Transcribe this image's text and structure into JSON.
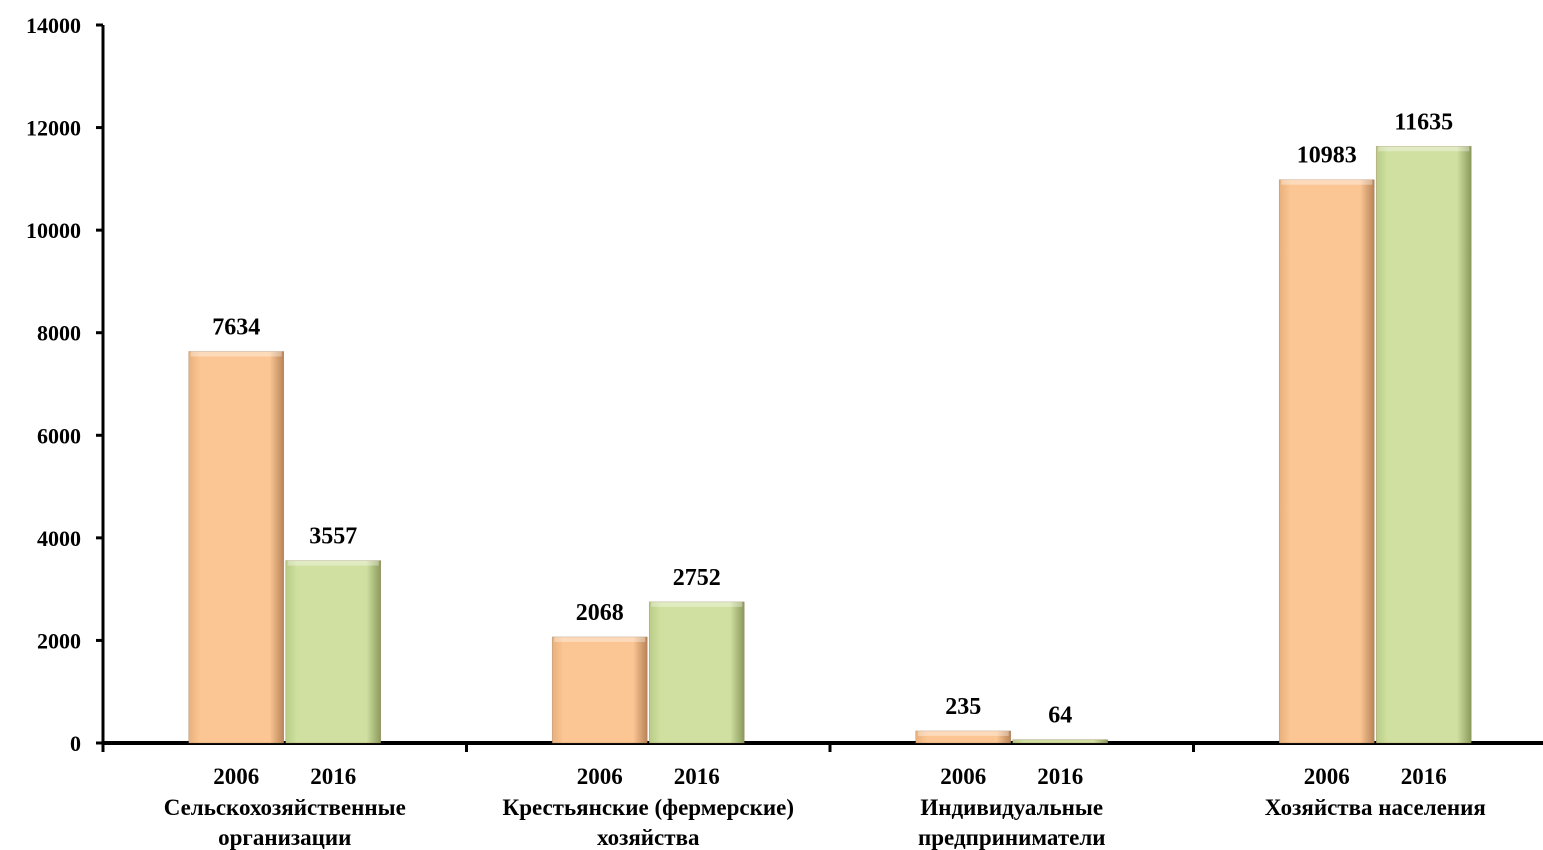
{
  "chart_data": {
    "type": "bar",
    "title": "",
    "xlabel": "",
    "ylabel": "",
    "ylim": [
      0,
      14000
    ],
    "yticks": [
      0,
      2000,
      4000,
      6000,
      8000,
      10000,
      12000,
      14000
    ],
    "grid": false,
    "legend": "none",
    "categories": [
      [
        "Сельскохозяйственные",
        "организации"
      ],
      [
        "Крестьянские (фермерские)",
        "хозяйства"
      ],
      [
        "Индивидуальные",
        "предприниматели"
      ],
      [
        "Хозяйства населения"
      ]
    ],
    "series": [
      {
        "label": "2006",
        "color": "#fcc694",
        "values": [
          7634,
          2068,
          235,
          10983
        ]
      },
      {
        "label": "2016",
        "color": "#cfe0a0",
        "values": [
          3557,
          2752,
          64,
          11635
        ]
      }
    ]
  }
}
